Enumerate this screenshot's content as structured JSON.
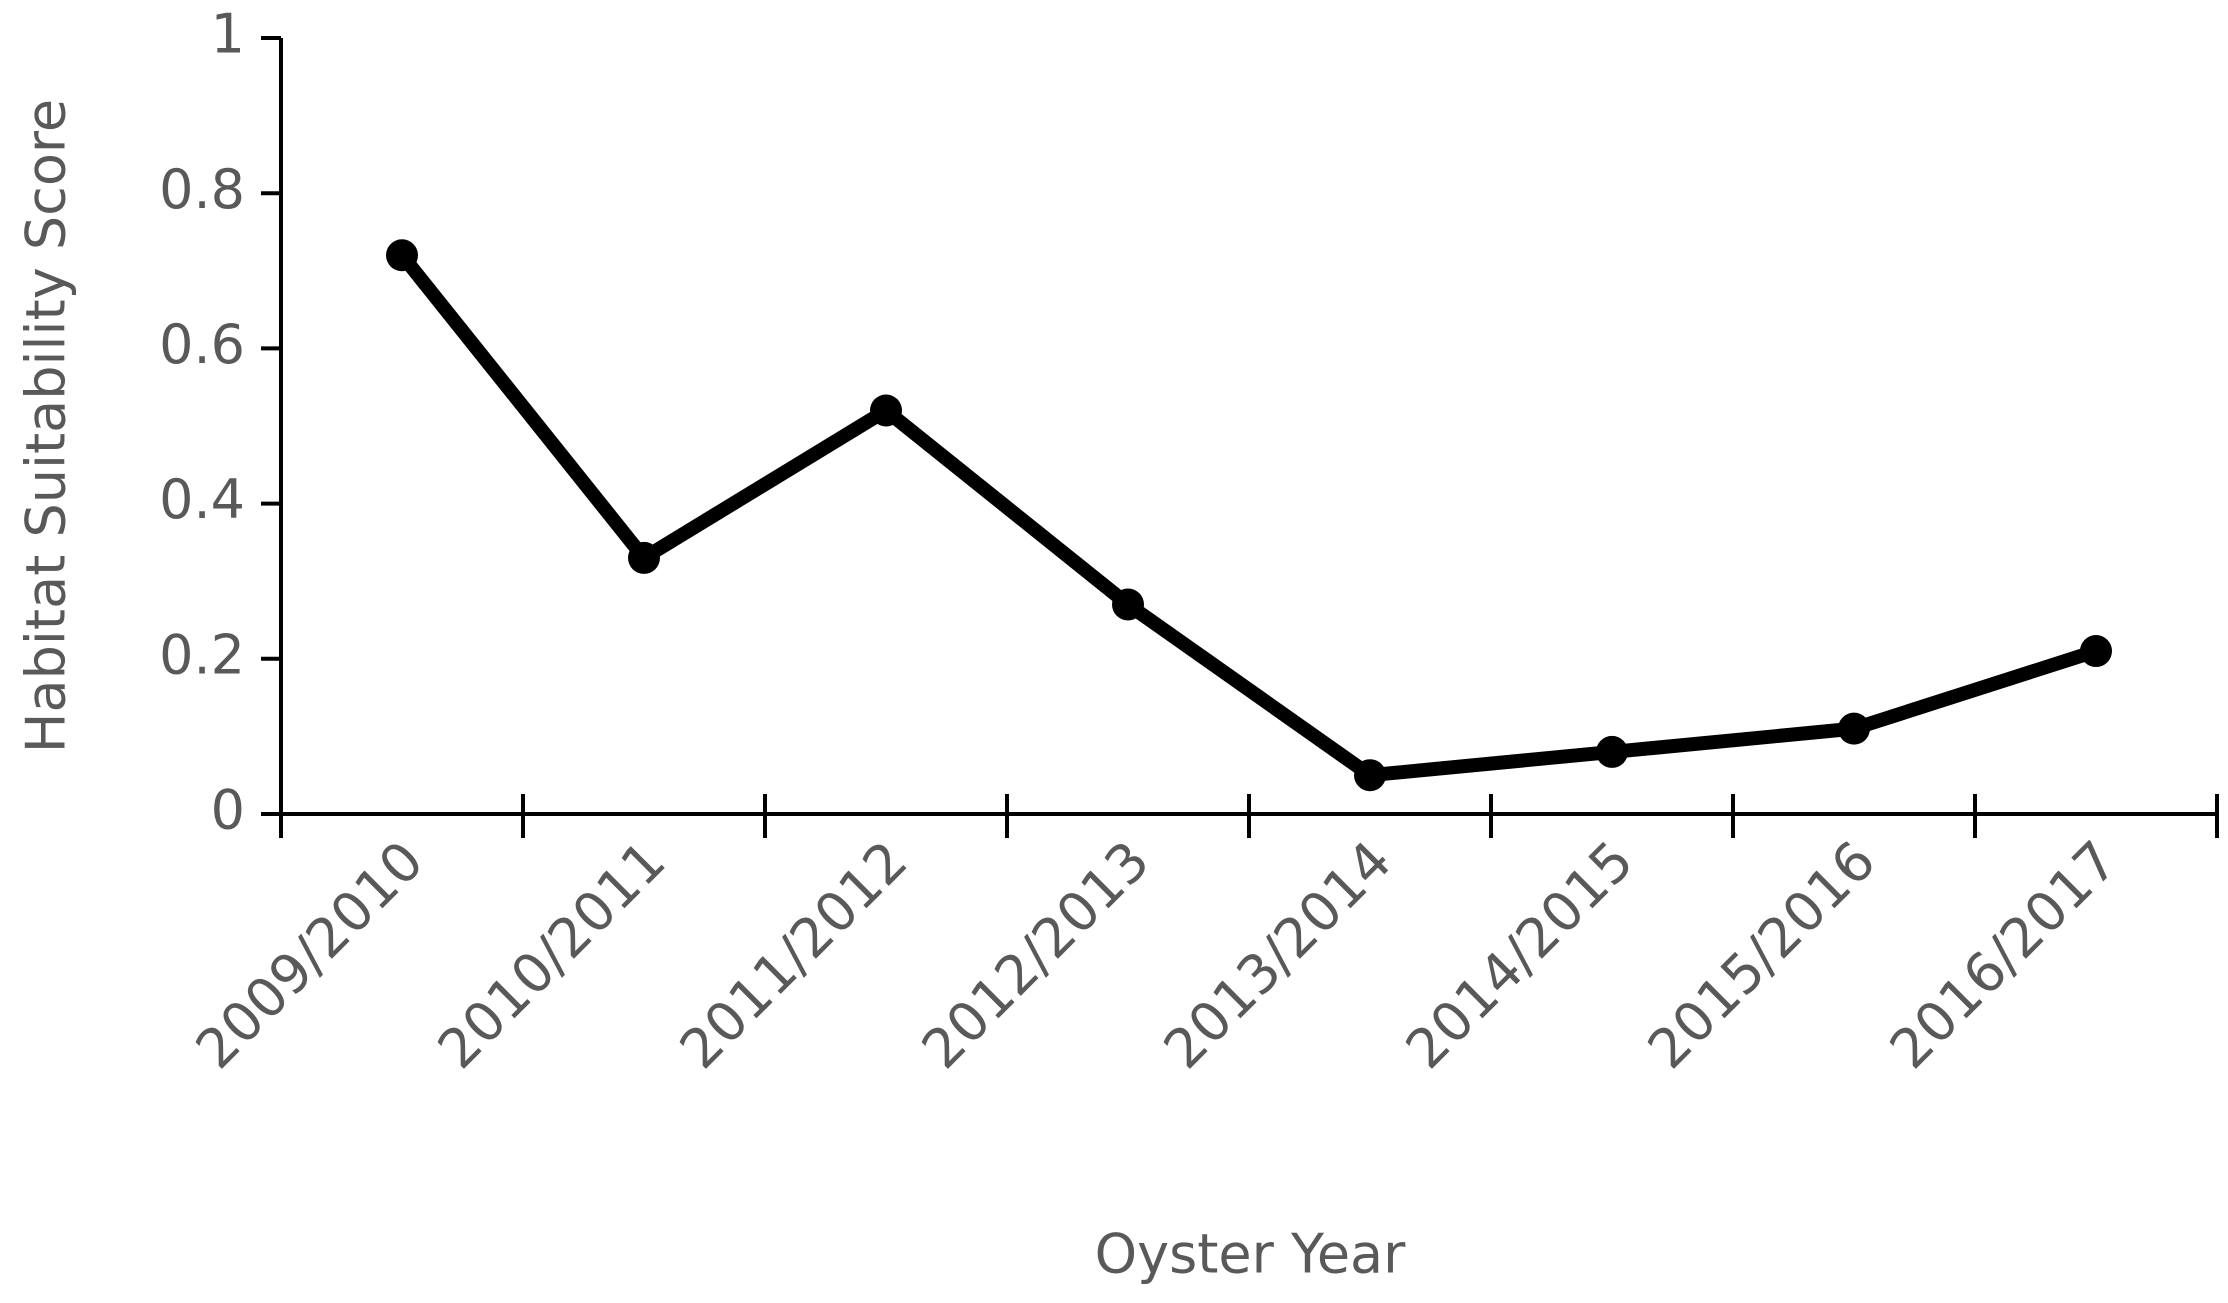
{
  "chart_data": {
    "type": "line",
    "x_label": "Oyster Year",
    "y_label": "Habitat Suitability Score",
    "categories": [
      "2009/2010",
      "2010/2011",
      "2011/2012",
      "2012/2013",
      "2013/2014",
      "2014/2015",
      "2015/2016",
      "2016/2017"
    ],
    "values": [
      0.72,
      0.33,
      0.52,
      0.27,
      0.05,
      0.08,
      0.11,
      0.21
    ],
    "color": "#000000",
    "ylim": [
      0,
      1
    ],
    "yticks": [
      0,
      0.2,
      0.4,
      0.6,
      0.8,
      1
    ],
    "grid": false
  }
}
